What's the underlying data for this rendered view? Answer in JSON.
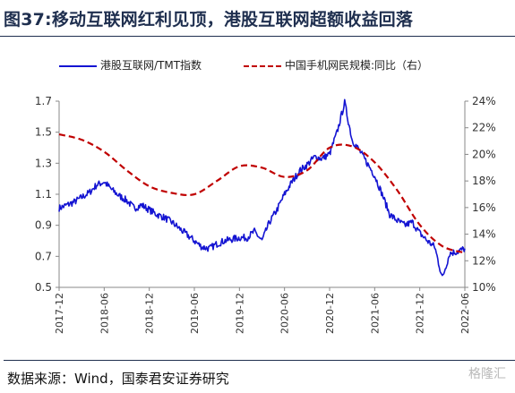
{
  "header": {
    "title": "图37:移动互联网红利见顶，港股互联网超额收益回落"
  },
  "footer": {
    "source": "数据来源：Wind，国泰君安证券研究",
    "watermark": "格隆汇"
  },
  "colors": {
    "series1": "#1414d2",
    "series2": "#c00000",
    "title": "#1f2f4f",
    "axis": "#888888"
  },
  "chart_data": {
    "type": "line",
    "legend_position": "top",
    "grid": false,
    "x_tick_labels": [
      "2017-12",
      "2018-06",
      "2018-12",
      "2019-06",
      "2019-12",
      "2020-06",
      "2020-12",
      "2021-06",
      "2021-12",
      "2022-06"
    ],
    "y_left": {
      "lim": [
        0.5,
        1.7
      ],
      "ticks": [
        "0.5",
        "0.7",
        "0.9",
        "1.1",
        "1.3",
        "1.5",
        "1.7"
      ]
    },
    "y_right": {
      "lim": [
        10,
        24
      ],
      "ticks": [
        "10%",
        "12%",
        "14%",
        "16%",
        "18%",
        "20%",
        "22%",
        "24%"
      ]
    },
    "series": [
      {
        "name": "港股互联网/TMT指数",
        "axis": "left",
        "style": "solid",
        "points": [
          [
            "2017-12",
            1.01
          ],
          [
            "2018-01",
            1.03
          ],
          [
            "2018-02",
            1.05
          ],
          [
            "2018-03",
            1.08
          ],
          [
            "2018-04",
            1.11
          ],
          [
            "2018-05",
            1.16
          ],
          [
            "2018-06",
            1.18
          ],
          [
            "2018-07",
            1.13
          ],
          [
            "2018-08",
            1.09
          ],
          [
            "2018-09",
            1.06
          ],
          [
            "2018-10",
            1.01
          ],
          [
            "2018-11",
            1.03
          ],
          [
            "2018-12",
            1.0
          ],
          [
            "2019-01",
            0.97
          ],
          [
            "2019-02",
            0.95
          ],
          [
            "2019-03",
            0.92
          ],
          [
            "2019-04",
            0.88
          ],
          [
            "2019-05",
            0.84
          ],
          [
            "2019-06",
            0.8
          ],
          [
            "2019-07",
            0.76
          ],
          [
            "2019-08",
            0.75
          ],
          [
            "2019-09",
            0.78
          ],
          [
            "2019-10",
            0.8
          ],
          [
            "2019-11",
            0.81
          ],
          [
            "2019-12",
            0.82
          ],
          [
            "2020-01",
            0.82
          ],
          [
            "2020-02",
            0.86
          ],
          [
            "2020-03",
            0.8
          ],
          [
            "2020-04",
            0.92
          ],
          [
            "2020-05",
            1.0
          ],
          [
            "2020-06",
            1.1
          ],
          [
            "2020-07",
            1.18
          ],
          [
            "2020-08",
            1.25
          ],
          [
            "2020-09",
            1.29
          ],
          [
            "2020-10",
            1.34
          ],
          [
            "2020-11",
            1.33
          ],
          [
            "2020-12",
            1.36
          ],
          [
            "2021-01",
            1.5
          ],
          [
            "2021-02",
            1.69
          ],
          [
            "2021-03",
            1.45
          ],
          [
            "2021-04",
            1.38
          ],
          [
            "2021-05",
            1.3
          ],
          [
            "2021-06",
            1.22
          ],
          [
            "2021-07",
            1.1
          ],
          [
            "2021-08",
            0.97
          ],
          [
            "2021-09",
            0.93
          ],
          [
            "2021-10",
            0.9
          ],
          [
            "2021-11",
            0.92
          ],
          [
            "2021-12",
            0.85
          ],
          [
            "2022-01",
            0.8
          ],
          [
            "2022-02",
            0.76
          ],
          [
            "2022-03",
            0.56
          ],
          [
            "2022-04",
            0.72
          ],
          [
            "2022-05",
            0.73
          ],
          [
            "2022-06",
            0.75
          ]
        ]
      },
      {
        "name": "中国手机网民规模:同比（右）",
        "axis": "right",
        "style": "dashed",
        "points": [
          [
            "2017-12",
            21.5
          ],
          [
            "2018-03",
            21.1
          ],
          [
            "2018-06",
            20.2
          ],
          [
            "2018-09",
            18.8
          ],
          [
            "2018-12",
            17.6
          ],
          [
            "2019-03",
            17.1
          ],
          [
            "2019-06",
            17.0
          ],
          [
            "2019-09",
            18.0
          ],
          [
            "2019-12",
            19.1
          ],
          [
            "2020-03",
            19.0
          ],
          [
            "2020-06",
            18.3
          ],
          [
            "2020-09",
            18.8
          ],
          [
            "2020-12",
            20.5
          ],
          [
            "2021-03",
            20.6
          ],
          [
            "2021-06",
            19.4
          ],
          [
            "2021-09",
            17.3
          ],
          [
            "2021-12",
            14.7
          ],
          [
            "2022-03",
            13.1
          ],
          [
            "2022-06",
            12.6
          ]
        ]
      }
    ]
  }
}
